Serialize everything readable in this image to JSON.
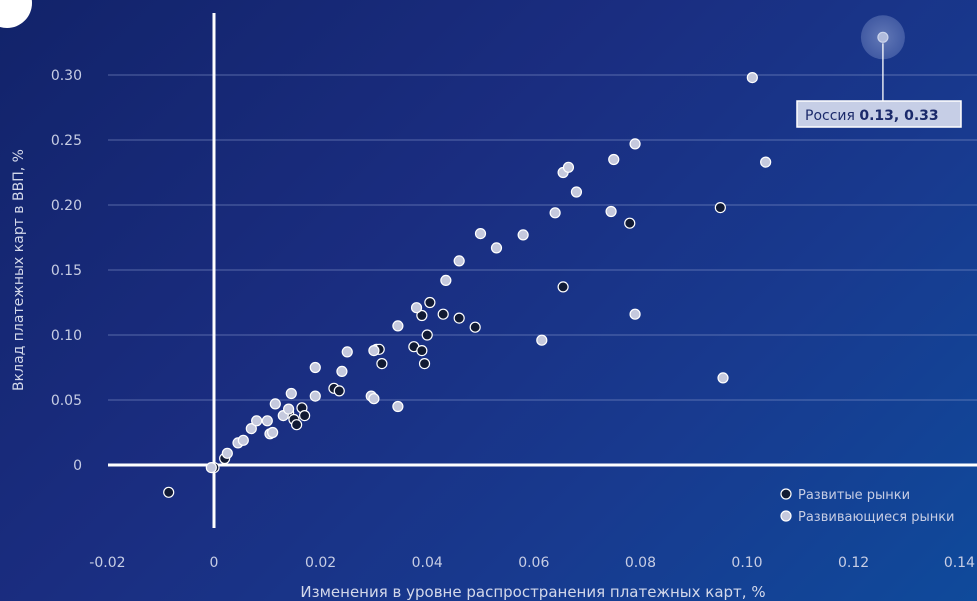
{
  "chart_data": {
    "type": "scatter",
    "xlabel": "Изменения в уровне распространения платежных карт, %",
    "ylabel": "Вклад платежных карт в ВВП, %",
    "xlim": [
      -0.02,
      0.14
    ],
    "ylim": [
      -0.03,
      0.345
    ],
    "x_ticks": [
      "-0.02",
      "0",
      "0.02",
      "0.04",
      "0.06",
      "0.08",
      "0.10",
      "0.12",
      "0.14"
    ],
    "x_tick_values": [
      -0.02,
      0,
      0.02,
      0.04,
      0.06,
      0.08,
      0.1,
      0.12,
      0.14
    ],
    "y_ticks": [
      "0",
      "0.05",
      "0.10",
      "0.15",
      "0.20",
      "0.25",
      "0.30"
    ],
    "y_tick_values": [
      0,
      0.05,
      0.1,
      0.15,
      0.2,
      0.25,
      0.3
    ],
    "grid": "horizontal",
    "legend_position": "bottom-right",
    "series": [
      {
        "name": "Развитые рынки",
        "color": "#111a33",
        "points": [
          [
            -0.0085,
            -0.021
          ],
          [
            0.0,
            -0.002
          ],
          [
            0.002,
            0.005
          ],
          [
            0.014,
            0.04
          ],
          [
            0.015,
            0.035
          ],
          [
            0.0155,
            0.031
          ],
          [
            0.0165,
            0.044
          ],
          [
            0.017,
            0.038
          ],
          [
            0.0225,
            0.059
          ],
          [
            0.0235,
            0.057
          ],
          [
            0.0305,
            0.089
          ],
          [
            0.031,
            0.089
          ],
          [
            0.0315,
            0.078
          ],
          [
            0.0375,
            0.091
          ],
          [
            0.039,
            0.115
          ],
          [
            0.039,
            0.088
          ],
          [
            0.0395,
            0.078
          ],
          [
            0.04,
            0.1
          ],
          [
            0.0405,
            0.125
          ],
          [
            0.043,
            0.116
          ],
          [
            0.046,
            0.113
          ],
          [
            0.049,
            0.106
          ],
          [
            0.0655,
            0.137
          ],
          [
            0.078,
            0.186
          ],
          [
            0.095,
            0.198
          ]
        ]
      },
      {
        "name": "Развивающиеся рынки",
        "color": "#c5c9dd",
        "points": [
          [
            -0.0005,
            -0.002
          ],
          [
            0.0025,
            0.009
          ],
          [
            0.0045,
            0.017
          ],
          [
            0.0055,
            0.019
          ],
          [
            0.007,
            0.028
          ],
          [
            0.008,
            0.034
          ],
          [
            0.01,
            0.034
          ],
          [
            0.0105,
            0.024
          ],
          [
            0.011,
            0.025
          ],
          [
            0.0115,
            0.047
          ],
          [
            0.013,
            0.038
          ],
          [
            0.014,
            0.043
          ],
          [
            0.0145,
            0.055
          ],
          [
            0.019,
            0.053
          ],
          [
            0.019,
            0.075
          ],
          [
            0.024,
            0.072
          ],
          [
            0.025,
            0.087
          ],
          [
            0.0295,
            0.053
          ],
          [
            0.03,
            0.051
          ],
          [
            0.03,
            0.088
          ],
          [
            0.0345,
            0.045
          ],
          [
            0.0345,
            0.107
          ],
          [
            0.038,
            0.121
          ],
          [
            0.0435,
            0.142
          ],
          [
            0.046,
            0.157
          ],
          [
            0.05,
            0.178
          ],
          [
            0.053,
            0.167
          ],
          [
            0.058,
            0.177
          ],
          [
            0.0615,
            0.096
          ],
          [
            0.064,
            0.194
          ],
          [
            0.0655,
            0.225
          ],
          [
            0.0665,
            0.229
          ],
          [
            0.068,
            0.21
          ],
          [
            0.0745,
            0.195
          ],
          [
            0.075,
            0.235
          ],
          [
            0.079,
            0.247
          ],
          [
            0.079,
            0.116
          ],
          [
            0.0955,
            0.067
          ],
          [
            0.101,
            0.298
          ],
          [
            0.1035,
            0.233
          ],
          [
            0.1255,
            0.329
          ]
        ]
      }
    ],
    "annotation": {
      "label": "Россия",
      "value_text": "0.13, 0.33",
      "x": 0.1255,
      "y": 0.329
    }
  }
}
